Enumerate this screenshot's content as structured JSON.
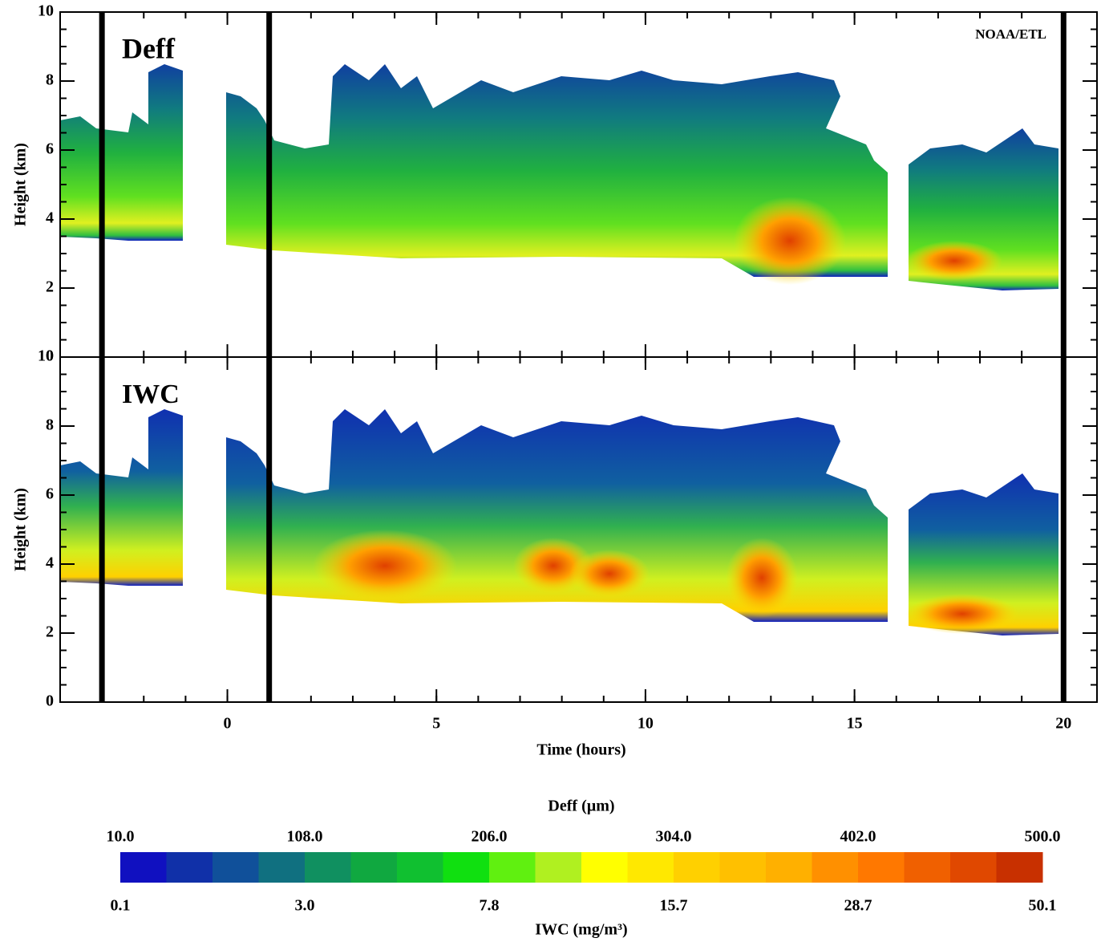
{
  "chart_data": {
    "type": "time-height",
    "panels": [
      {
        "label": "Deff",
        "annotation": "NOAA/ETL"
      },
      {
        "label": "IWC"
      }
    ],
    "x_label": "Time (hours)",
    "y_label": "Height (km)",
    "xlim": [
      -4,
      20.8
    ],
    "xticks": [
      0,
      5,
      10,
      15,
      20
    ],
    "ylim": [
      0,
      10
    ],
    "yticks": [
      0,
      2,
      4,
      6,
      8,
      10
    ],
    "vlines": [
      -3,
      1,
      20
    ],
    "colorbar": {
      "title": "Deff (µm)",
      "ticks": [
        {
          "value": 10,
          "label": "10.0"
        },
        {
          "value": 108,
          "label": "108.0"
        },
        {
          "value": 206,
          "label": "206.0"
        },
        {
          "value": 304,
          "label": "304.0"
        },
        {
          "value": 402,
          "label": "402.0"
        },
        {
          "value": 500,
          "label": "500.0"
        }
      ],
      "bottom_title": "IWC (mg/m³)",
      "bottom_ticks": [
        0.1,
        {
          "value": 3,
          "label": "3.0"
        },
        7.8,
        15.7,
        28.7,
        50.1
      ],
      "colors": [
        "#1010c0",
        "#1030a8",
        "#10509a",
        "#107080",
        "#109060",
        "#10a840",
        "#10c030",
        "#10e010",
        "#60f010",
        "#b0f020",
        "#ffff00",
        "#ffe800",
        "#ffd000",
        "#ffc000",
        "#ffb000",
        "#ff9000",
        "#ff7800",
        "#f06000",
        "#e04800",
        "#c83000"
      ]
    }
  }
}
